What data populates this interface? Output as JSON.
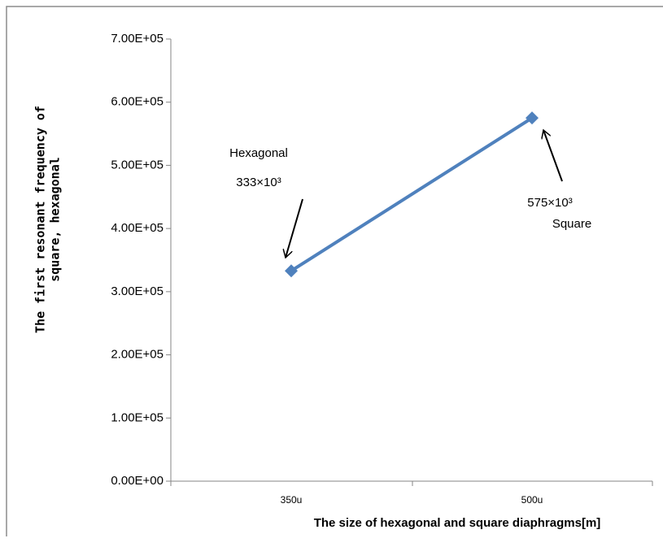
{
  "chart_data": {
    "type": "line",
    "categories": [
      "350u",
      "500u"
    ],
    "values": [
      333000,
      575000
    ],
    "color": "#4f81bd",
    "ylim": [
      0,
      700000
    ],
    "yticks": [
      {
        "value": 0,
        "label": "0.00E+00"
      },
      {
        "value": 100000,
        "label": "1.00E+05"
      },
      {
        "value": 200000,
        "label": "2.00E+05"
      },
      {
        "value": 300000,
        "label": "3.00E+05"
      },
      {
        "value": 400000,
        "label": "4.00E+05"
      },
      {
        "value": 500000,
        "label": "5.00E+05"
      },
      {
        "value": 600000,
        "label": "6.00E+05"
      },
      {
        "value": 700000,
        "label": "7.00E+05"
      }
    ],
    "grid": false,
    "x_label": "The size of hexagonal and square diaphragms[m]",
    "y_label_lines": [
      "The first resonant frequency of",
      "square, hexagonal"
    ],
    "annotations": [
      "Hexagonal",
      "333×10³",
      "575×10³",
      "Square"
    ]
  }
}
